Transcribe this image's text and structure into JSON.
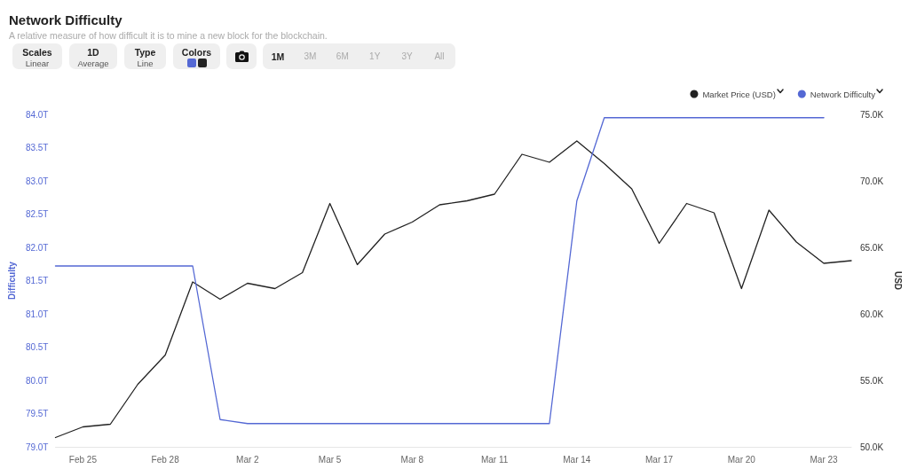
{
  "chart_data": {
    "type": "line",
    "title": "Network Difficulty",
    "subtitle": "A relative measure of how difficult it is to mine a new block for the blockchain.",
    "ylabel": "Difficulty",
    "y2label": "USD",
    "annotations": [
      "Scales",
      "Linear",
      "1D",
      "Average",
      "Type",
      "Line",
      "Colors",
      "1M",
      "3M",
      "6M",
      "1Y",
      "3Y",
      "All"
    ],
    "x": [
      "--02-24",
      "--02-25",
      "--02-26",
      "--02-27",
      "--02-28",
      "--02-29",
      "--03-01",
      "--03-02",
      "--03-03",
      "--03-04",
      "--03-05",
      "--03-06",
      "--03-07",
      "--03-08",
      "--03-09",
      "--03-10",
      "--03-11",
      "--03-12",
      "--03-13",
      "--03-14",
      "--03-15",
      "--03-16",
      "--03-17",
      "--03-18",
      "--03-19",
      "--03-20",
      "--03-21",
      "--03-22",
      "--03-23",
      "--03-24"
    ],
    "series": [
      {
        "name": "Market Price (USD)",
        "color": "#222222",
        "axis": "y2",
        "values": [
          50.7,
          51.5,
          51.7,
          54.7,
          56.9,
          62.4,
          61.1,
          62.3,
          61.9,
          63.1,
          68.3,
          63.7,
          66.0,
          66.9,
          68.2,
          68.5,
          69.0,
          72.0,
          71.4,
          73.0,
          71.3,
          69.4,
          65.3,
          68.3,
          67.6,
          61.9,
          67.8,
          65.4,
          63.8,
          64.0
        ]
      },
      {
        "name": "Network Difficulty",
        "color": "#5468d4",
        "axis": "y",
        "values": [
          81.72,
          81.72,
          81.72,
          81.72,
          81.72,
          81.72,
          79.41,
          79.35,
          79.35,
          79.35,
          79.35,
          79.35,
          79.35,
          79.35,
          79.35,
          79.35,
          79.35,
          79.35,
          79.35,
          82.7,
          83.95,
          83.95,
          83.95,
          83.95,
          83.95,
          83.95,
          83.95,
          83.95,
          83.95,
          null
        ]
      }
    ],
    "xlim": [
      "--02-24",
      "--03-24"
    ],
    "xticks": [
      {
        "value": "--02-25",
        "label": "Feb 25"
      },
      {
        "value": "--02-28",
        "label": "Feb 28"
      },
      {
        "value": "--03-02",
        "label": "Mar 2"
      },
      {
        "value": "--03-05",
        "label": "Mar 5"
      },
      {
        "value": "--03-08",
        "label": "Mar 8"
      },
      {
        "value": "--03-11",
        "label": "Mar 11"
      },
      {
        "value": "--03-14",
        "label": "Mar 14"
      },
      {
        "value": "--03-17",
        "label": "Mar 17"
      },
      {
        "value": "--03-20",
        "label": "Mar 20"
      },
      {
        "value": "--03-23",
        "label": "Mar 23"
      }
    ],
    "ylim": [
      79,
      84
    ],
    "yticks": [
      {
        "value": 79,
        "label": "79.0T"
      },
      {
        "value": 79.5,
        "label": "79.5T"
      },
      {
        "value": 80,
        "label": "80.0T"
      },
      {
        "value": 80.5,
        "label": "80.5T"
      },
      {
        "value": 81,
        "label": "81.0T"
      },
      {
        "value": 81.5,
        "label": "81.5T"
      },
      {
        "value": 82,
        "label": "82.0T"
      },
      {
        "value": 82.5,
        "label": "82.5T"
      },
      {
        "value": 83,
        "label": "83.0T"
      },
      {
        "value": 83.5,
        "label": "83.5T"
      },
      {
        "value": 84,
        "label": "84.0T"
      }
    ],
    "y2lim": [
      50,
      75
    ],
    "y2ticks": [
      {
        "value": 50,
        "label": "50.0K"
      },
      {
        "value": 55,
        "label": "55.0K"
      },
      {
        "value": 60,
        "label": "60.0K"
      },
      {
        "value": 65,
        "label": "65.0K"
      },
      {
        "value": 70,
        "label": "70.0K"
      },
      {
        "value": 75,
        "label": "75.0K"
      }
    ],
    "legend": "top right",
    "marker": "none"
  }
}
